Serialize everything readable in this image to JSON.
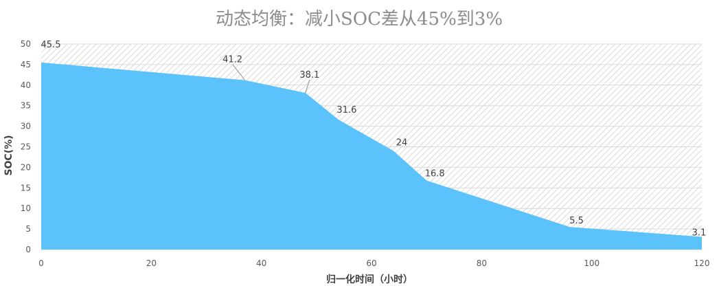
{
  "chart_data": {
    "type": "area",
    "title": "动态均衡：减小SOC差从45%到3%",
    "xlabel": "归一化时间（小时）",
    "ylabel": "SOC(%)",
    "xlim": [
      0,
      120
    ],
    "ylim": [
      0,
      50
    ],
    "xticks": [
      0,
      20,
      40,
      60,
      80,
      100,
      120
    ],
    "yticks": [
      0,
      5,
      10,
      15,
      20,
      25,
      30,
      35,
      40,
      45,
      50
    ],
    "x": [
      0,
      37,
      48,
      54,
      64,
      70,
      96,
      120
    ],
    "values": [
      45.5,
      41.2,
      38.1,
      31.6,
      24,
      16.8,
      5.5,
      3.1
    ],
    "data_labels": [
      "45.5",
      "41.2",
      "38.1",
      "31.6",
      "24",
      "16.8",
      "5.5",
      "3.1"
    ],
    "area_color": "#5bc2fb",
    "background": "hatched-gray",
    "grid": true
  }
}
